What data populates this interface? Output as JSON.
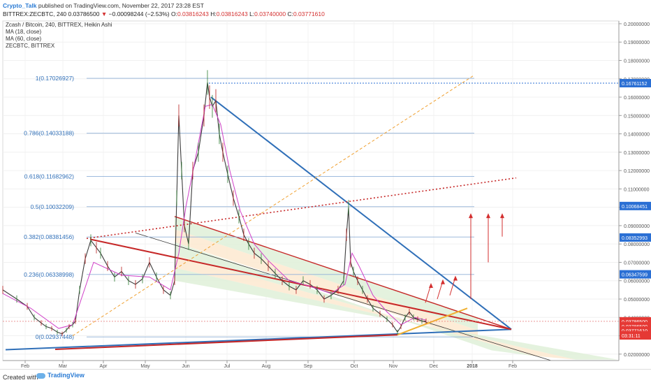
{
  "header": {
    "author": "Crypto_Talk",
    "published": "published on TradingView.com, November 22, 2017 23:28 EST",
    "symbol": "BITTREX:ZECBTC, 240",
    "last_price": "0.03786500",
    "change": "−0.00098244 (−2.53%)",
    "o_label": "O:",
    "o_value": "0.03816243",
    "h_label": "H:",
    "h_value": "0.03816243",
    "l_label": "L:",
    "l_value": "0.03740000",
    "c_label": "C:",
    "c_value": "0.03771610"
  },
  "legend": {
    "title": "Zcash / Bitcoin, 240, BITTREX, Heikin Ashi",
    "ma18": "MA (18, close)",
    "ma60": "MA (60, close)",
    "compare": "ZECBTC, BITTREX"
  },
  "footer": {
    "created": "Created with",
    "brand": "TradingView"
  },
  "chart_data": {
    "type": "line",
    "title": "Zcash / Bitcoin, 240, BITTREX, Heikin Ashi",
    "x_ticks": [
      "Feb",
      "Mar",
      "Apr",
      "May",
      "Jun",
      "Jul",
      "Aug",
      "Sep",
      "Oct",
      "Nov",
      "Dec",
      "2018",
      "Feb"
    ],
    "y_ticks": [
      "0.20000000",
      "0.19000000",
      "0.18000000",
      "0.17000000",
      "0.16000000",
      "0.15000000",
      "0.14000000",
      "0.13000000",
      "0.12000000",
      "0.11000000",
      "0.10000000",
      "0.09000000",
      "0.08000000",
      "0.07000000",
      "0.06000000",
      "0.05000000",
      "0.04000000",
      "0.03000000",
      "0.02000000"
    ],
    "ylim": [
      0.0165,
      0.2015
    ],
    "fib_levels": [
      {
        "label": "1(0.17026927)",
        "value": 0.17026927
      },
      {
        "label": "0.786(0.14033188)",
        "value": 0.14033188
      },
      {
        "label": "0.618(0.11682962)",
        "value": 0.11682962
      },
      {
        "label": "0.5(0.10032209)",
        "value": 0.10032209
      },
      {
        "label": "0.382(0.08381456)",
        "value": 0.08381456
      },
      {
        "label": "0.236(0.06338998)",
        "value": 0.06338998
      },
      {
        "label": "0(0.02937448)",
        "value": 0.02937448
      }
    ],
    "price_tags": [
      {
        "label": "0.16761152",
        "value": 0.16761152,
        "color": "#2a6fd4"
      },
      {
        "label": "0.10068451",
        "value": 0.10068451,
        "color": "#2a6fd4"
      },
      {
        "label": "0.08352993",
        "value": 0.08352993,
        "color": "#2a6fd4"
      },
      {
        "label": "0.06347599",
        "value": 0.06347599,
        "color": "#2a6fd4"
      },
      {
        "label": "0.03786500",
        "value": 0.037865,
        "color": "#e53935"
      },
      {
        "label": "0.03786500",
        "value": 0.0352,
        "color": "#e53935"
      },
      {
        "label": "0.03771610",
        "value": 0.0328,
        "color": "#e53935"
      },
      {
        "label": "03:31:11",
        "value": 0.0302,
        "color": "#e53935"
      }
    ],
    "price": {
      "x": [
        0,
        20,
        35,
        45,
        55,
        62,
        70,
        78,
        85,
        91,
        95,
        100,
        104,
        110,
        118,
        126,
        134,
        140,
        150,
        160,
        170,
        180,
        190,
        200,
        210,
        220,
        230,
        240,
        246,
        249,
        252,
        256,
        260,
        266,
        272,
        280,
        288,
        293,
        296,
        300,
        305,
        310,
        315,
        322,
        330,
        338,
        345,
        352,
        360,
        370,
        380,
        390,
        400,
        410,
        420,
        430,
        440,
        450,
        460,
        470,
        480,
        488,
        492,
        495,
        498,
        502,
        508,
        515,
        522,
        530,
        540,
        550,
        558,
        565,
        570,
        576,
        582,
        588,
        594,
        600,
        606
      ],
      "y": [
        0.055,
        0.05,
        0.046,
        0.04,
        0.037,
        0.035,
        0.034,
        0.032,
        0.031,
        0.033,
        0.035,
        0.036,
        0.038,
        0.055,
        0.072,
        0.082,
        0.078,
        0.075,
        0.068,
        0.062,
        0.065,
        0.06,
        0.058,
        0.061,
        0.07,
        0.062,
        0.055,
        0.052,
        0.06,
        0.105,
        0.15,
        0.12,
        0.09,
        0.08,
        0.12,
        0.13,
        0.15,
        0.168,
        0.16,
        0.155,
        0.158,
        0.14,
        0.13,
        0.118,
        0.105,
        0.095,
        0.085,
        0.08,
        0.075,
        0.072,
        0.068,
        0.064,
        0.06,
        0.057,
        0.055,
        0.06,
        0.058,
        0.055,
        0.05,
        0.052,
        0.055,
        0.06,
        0.085,
        0.1,
        0.07,
        0.065,
        0.06,
        0.055,
        0.05,
        0.045,
        0.042,
        0.039,
        0.036,
        0.032,
        0.035,
        0.04,
        0.043,
        0.04,
        0.039,
        0.038,
        0.0379
      ]
    },
    "ma18": {
      "x": [
        0,
        40,
        80,
        100,
        130,
        170,
        210,
        240,
        252,
        262,
        275,
        290,
        300,
        312,
        325,
        340,
        360,
        380,
        410,
        440,
        470,
        490,
        500,
        510,
        530,
        550,
        570,
        590,
        606
      ],
      "y": [
        0.053,
        0.045,
        0.034,
        0.036,
        0.07,
        0.063,
        0.062,
        0.055,
        0.075,
        0.1,
        0.125,
        0.155,
        0.156,
        0.145,
        0.12,
        0.098,
        0.08,
        0.071,
        0.06,
        0.057,
        0.053,
        0.058,
        0.075,
        0.068,
        0.052,
        0.043,
        0.036,
        0.04,
        0.0385
      ]
    },
    "trendlines": [
      {
        "name": "blue-down",
        "x": [
          298,
          728
        ],
        "y": [
          0.16,
          0.0335
        ],
        "color": "#2f6fb8"
      },
      {
        "name": "blue-base",
        "x": [
          4,
          728
        ],
        "y": [
          0.0224,
          0.0335
        ],
        "color": "#2f6fb8"
      },
      {
        "name": "red-upper",
        "x": [
          125,
          728
        ],
        "y": [
          0.0826,
          0.0335
        ],
        "color": "#c62828"
      },
      {
        "name": "red-lower",
        "x": [
          75,
          565
        ],
        "y": [
          0.0226,
          0.0305
        ],
        "color": "#c62828"
      }
    ],
    "annotations": [
      {
        "name": "arrow-1",
        "x": 605,
        "y0": 0.048,
        "y1": 0.058
      },
      {
        "name": "arrow-2",
        "x": 622,
        "y0": 0.05,
        "y1": 0.06
      },
      {
        "name": "arrow-3",
        "x": 640,
        "y0": 0.052,
        "y1": 0.062
      },
      {
        "name": "arrow-4",
        "x": 670,
        "y0": 0.05,
        "y1": 0.096
      },
      {
        "name": "arrow-5",
        "x": 695,
        "y0": 0.07,
        "y1": 0.096
      },
      {
        "name": "arrow-6",
        "x": 715,
        "y0": 0.084,
        "y1": 0.096
      }
    ]
  }
}
